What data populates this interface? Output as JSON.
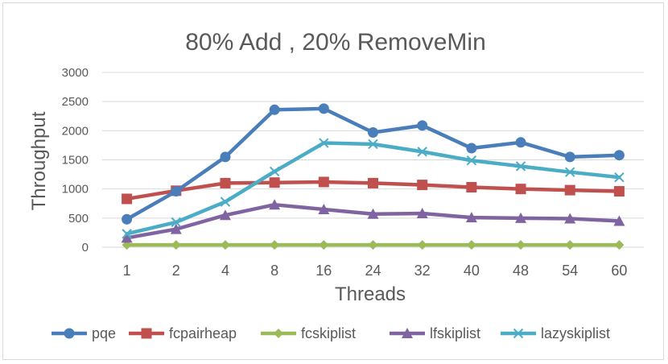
{
  "chart_data": {
    "type": "line",
    "title": "80% Add , 20% RemoveMin",
    "xlabel": "Threads",
    "ylabel": "Throughput",
    "categories": [
      "1",
      "2",
      "4",
      "8",
      "16",
      "24",
      "32",
      "40",
      "48",
      "54",
      "60"
    ],
    "ylim": [
      0,
      3000
    ],
    "yticks": [
      0,
      500,
      1000,
      1500,
      2000,
      2500,
      3000
    ],
    "grid": true,
    "legend_position": "bottom",
    "series": [
      {
        "name": "pqe",
        "color": "#4a7ebb",
        "marker": "circle",
        "values": [
          480,
          960,
          1550,
          2360,
          2380,
          1970,
          2090,
          1700,
          1800,
          1550,
          1580
        ]
      },
      {
        "name": "fcpairheap",
        "color": "#c0504d",
        "marker": "square",
        "values": [
          830,
          970,
          1100,
          1110,
          1120,
          1100,
          1070,
          1030,
          1000,
          980,
          960
        ]
      },
      {
        "name": "fcskiplist",
        "color": "#9bbb59",
        "marker": "diamond",
        "values": [
          40,
          40,
          40,
          40,
          40,
          40,
          40,
          40,
          40,
          40,
          40
        ]
      },
      {
        "name": "lfskiplist",
        "color": "#8064a2",
        "marker": "triangle",
        "values": [
          160,
          310,
          550,
          730,
          650,
          570,
          580,
          510,
          500,
          490,
          450
        ]
      },
      {
        "name": "lazyskiplist",
        "color": "#4bacc6",
        "marker": "x",
        "values": [
          230,
          430,
          780,
          1300,
          1790,
          1770,
          1640,
          1490,
          1390,
          1290,
          1200
        ]
      }
    ]
  }
}
